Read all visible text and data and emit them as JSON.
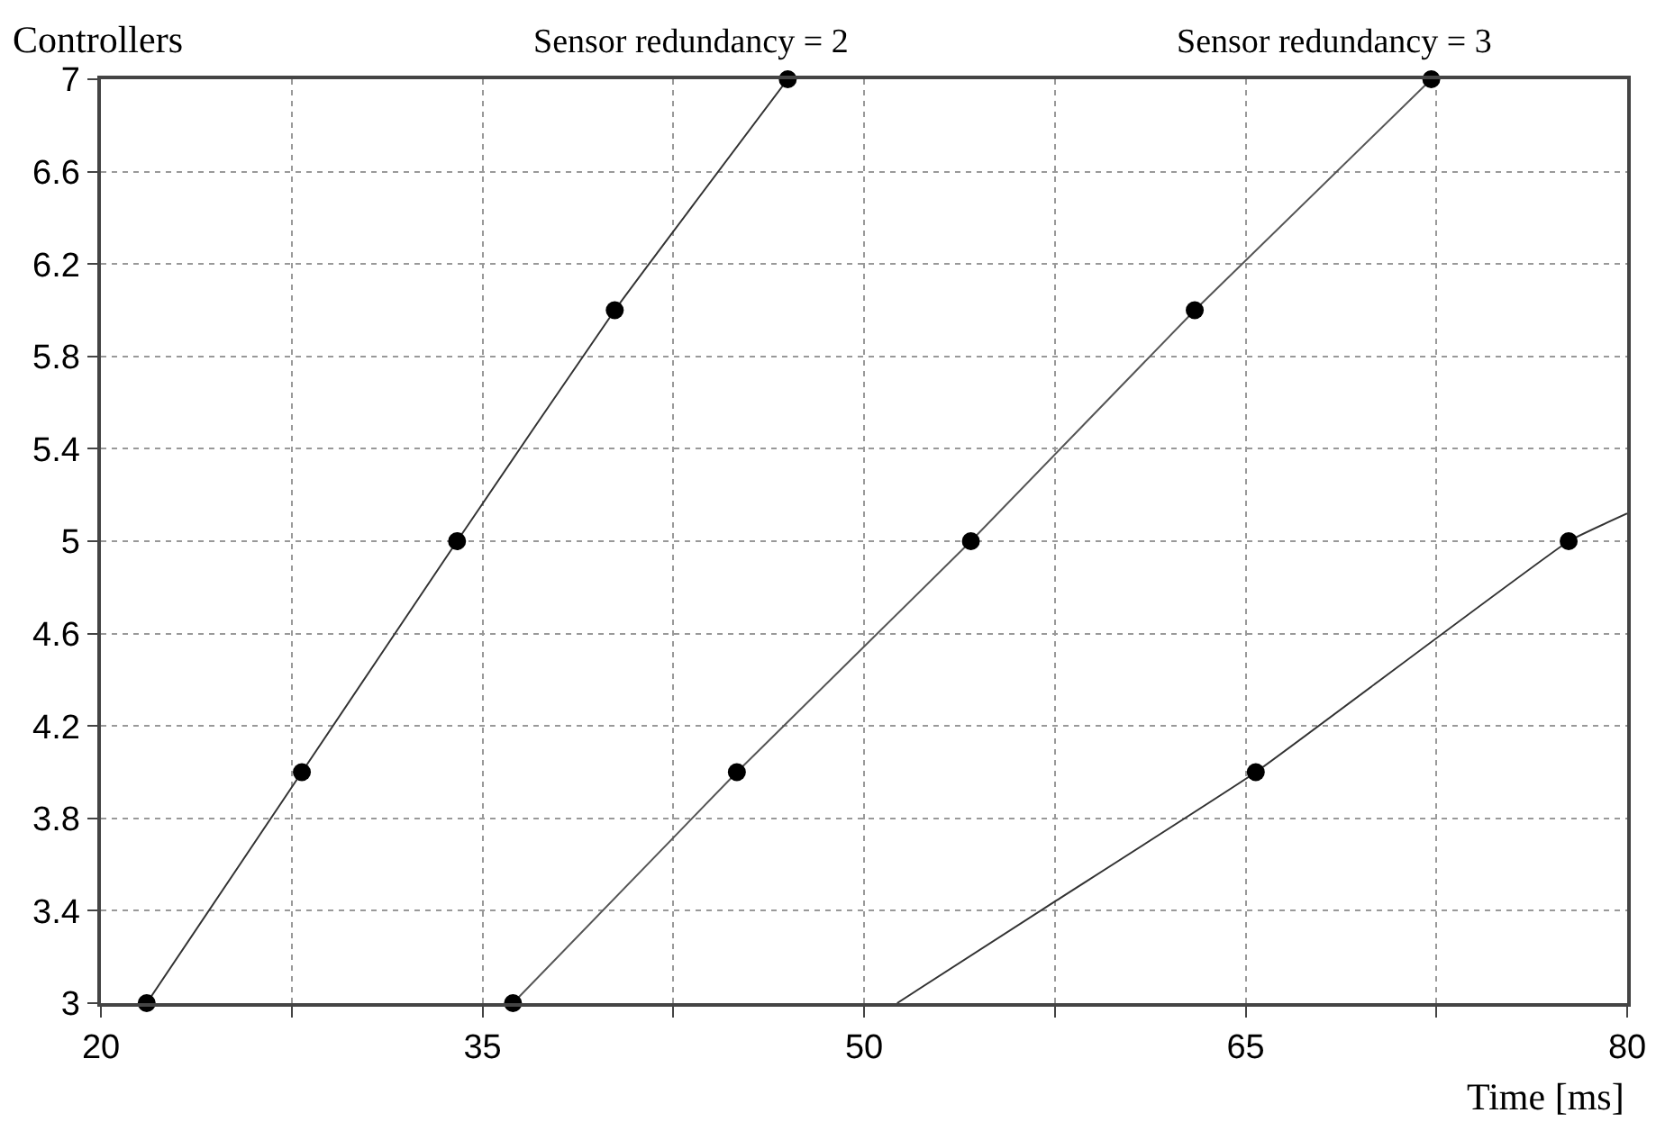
{
  "chart_data": {
    "type": "line",
    "ylabel": "Controllers",
    "xlabel": "Time [ms]",
    "annotations": [
      {
        "text": "Sensor redundancy = 2",
        "x": 47.0,
        "y": 7
      },
      {
        "text": "Sensor redundancy = 3",
        "x": 72.3,
        "y": 7
      }
    ],
    "series": [
      {
        "color": "#333333",
        "x": [
          21.8,
          27.9,
          34.0,
          40.2,
          47.0
        ],
        "values": [
          3,
          4,
          5,
          6,
          7
        ],
        "marker": "none"
      },
      {
        "color": "#555555",
        "x": [
          36.2,
          45.0,
          54.2,
          63.0,
          72.3
        ],
        "values": [
          3,
          4,
          5,
          6,
          7
        ],
        "marker": "none"
      },
      {
        "color": "#333333",
        "x": [
          51.3,
          57.5,
          65.4,
          77.7,
          80
        ],
        "values": [
          3,
          3.44,
          4,
          5,
          5.12
        ],
        "marker": "none"
      },
      {
        "type": "scatter",
        "color": "#000000",
        "x": [
          21.8,
          27.9,
          34.0,
          40.2,
          47.0,
          36.2,
          45.0,
          54.2,
          63.0,
          72.3,
          65.4,
          77.7
        ],
        "values": [
          3,
          4,
          5,
          6,
          7,
          3,
          4,
          5,
          6,
          7,
          4,
          5
        ],
        "marker": "circle"
      }
    ],
    "xlim": [
      20,
      80
    ],
    "xticks": [
      20,
      {
        "value": 27.5,
        "label": null
      },
      35,
      {
        "value": 42.5,
        "label": null
      },
      50,
      {
        "value": 57.5,
        "label": null
      },
      65,
      {
        "value": 72.5,
        "label": null
      },
      80
    ],
    "ylim": [
      3,
      7
    ],
    "yticks": [
      3,
      3.4,
      3.8,
      4.2,
      4.6,
      5,
      5.4,
      5.8,
      6.2,
      6.6,
      7
    ],
    "grid": true,
    "line_style": "solid"
  }
}
